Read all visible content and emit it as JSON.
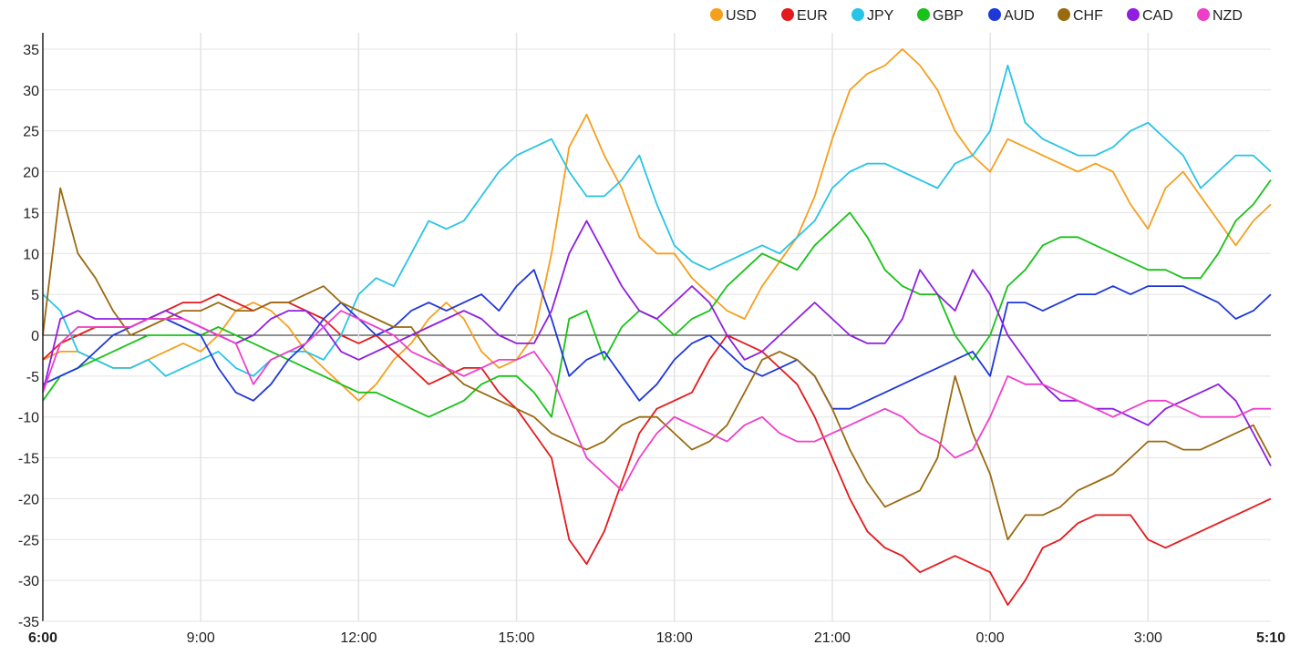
{
  "chart_data": {
    "type": "line",
    "title": "",
    "xlabel": "",
    "ylabel": "",
    "ylim": [
      -35,
      37
    ],
    "y_ticks": [
      35,
      30,
      25,
      20,
      15,
      10,
      5,
      0,
      -5,
      -10,
      -15,
      -20,
      -25,
      -30,
      -35
    ],
    "x_ticks": [
      "6:00",
      "9:00",
      "12:00",
      "15:00",
      "18:00",
      "21:00",
      "0:00",
      "3:00",
      "5:10"
    ],
    "x": [
      "6:00",
      "6:20",
      "6:40",
      "7:00",
      "7:20",
      "7:40",
      "8:00",
      "8:20",
      "8:40",
      "9:00",
      "9:20",
      "9:40",
      "10:00",
      "10:20",
      "10:40",
      "11:00",
      "11:20",
      "11:40",
      "12:00",
      "12:20",
      "12:40",
      "13:00",
      "13:20",
      "13:40",
      "14:00",
      "14:20",
      "14:40",
      "15:00",
      "15:20",
      "15:40",
      "16:00",
      "16:20",
      "16:40",
      "17:00",
      "17:20",
      "17:40",
      "18:00",
      "18:20",
      "18:40",
      "19:00",
      "19:20",
      "19:40",
      "20:00",
      "20:20",
      "20:40",
      "21:00",
      "21:20",
      "21:40",
      "22:00",
      "22:20",
      "22:40",
      "23:00",
      "23:20",
      "23:40",
      "0:00",
      "0:20",
      "0:40",
      "1:00",
      "1:20",
      "1:40",
      "2:00",
      "2:20",
      "2:40",
      "3:00",
      "3:20",
      "3:40",
      "4:00",
      "4:20",
      "4:40",
      "5:00",
      "5:10"
    ],
    "legend_position": "top-right",
    "grid": true,
    "series": [
      {
        "name": "USD",
        "color": "#f59f1e",
        "values": [
          -3,
          -2,
          -2,
          -3,
          -4,
          -4,
          -3,
          -2,
          -1,
          -2,
          0,
          3,
          4,
          3,
          1,
          -2,
          -4,
          -6,
          -8,
          -6,
          -3,
          -1,
          2,
          4,
          2,
          -2,
          -4,
          -3,
          0,
          10,
          23,
          27,
          22,
          18,
          12,
          10,
          10,
          7,
          5,
          3,
          2,
          6,
          9,
          12,
          17,
          24,
          30,
          32,
          33,
          35,
          33,
          30,
          25,
          22,
          20,
          24,
          23,
          22,
          21,
          20,
          21,
          20,
          16,
          13,
          18,
          20,
          17,
          14,
          11,
          14,
          16
        ]
      },
      {
        "name": "EUR",
        "color": "#e41a1c",
        "values": [
          -3,
          -1,
          0,
          1,
          1,
          1,
          2,
          3,
          4,
          4,
          5,
          4,
          3,
          4,
          4,
          3,
          2,
          0,
          -1,
          0,
          -2,
          -4,
          -6,
          -5,
          -4,
          -4,
          -7,
          -9,
          -12,
          -15,
          -25,
          -28,
          -24,
          -18,
          -12,
          -9,
          -8,
          -7,
          -3,
          0,
          -1,
          -2,
          -4,
          -6,
          -10,
          -15,
          -20,
          -24,
          -26,
          -27,
          -29,
          -28,
          -27,
          -28,
          -29,
          -33,
          -30,
          -26,
          -25,
          -23,
          -22,
          -22,
          -22,
          -25,
          -26,
          -25,
          -24,
          -23,
          -22,
          -21,
          -20
        ]
      },
      {
        "name": "JPY",
        "color": "#27c4e6",
        "values": [
          5,
          3,
          -2,
          -3,
          -4,
          -4,
          -3,
          -5,
          -4,
          -3,
          -2,
          -4,
          -5,
          -3,
          -2,
          -2,
          -3,
          0,
          5,
          7,
          6,
          10,
          14,
          13,
          14,
          17,
          20,
          22,
          23,
          24,
          20,
          17,
          17,
          19,
          22,
          16,
          11,
          9,
          8,
          9,
          10,
          11,
          10,
          12,
          14,
          18,
          20,
          21,
          21,
          20,
          19,
          18,
          21,
          22,
          25,
          33,
          26,
          24,
          23,
          22,
          22,
          23,
          25,
          26,
          24,
          22,
          18,
          20,
          22,
          22,
          20
        ]
      },
      {
        "name": "GBP",
        "color": "#19c219",
        "values": [
          -8,
          -5,
          -4,
          -3,
          -2,
          -1,
          0,
          0,
          0,
          0,
          1,
          0,
          -1,
          -2,
          -3,
          -4,
          -5,
          -6,
          -7,
          -7,
          -8,
          -9,
          -10,
          -9,
          -8,
          -6,
          -5,
          -5,
          -7,
          -10,
          2,
          3,
          -3,
          1,
          3,
          2,
          0,
          2,
          3,
          6,
          8,
          10,
          9,
          8,
          11,
          13,
          15,
          12,
          8,
          6,
          5,
          5,
          0,
          -3,
          0,
          6,
          8,
          11,
          12,
          12,
          11,
          10,
          9,
          8,
          8,
          7,
          7,
          10,
          14,
          16,
          19
        ]
      },
      {
        "name": "AUD",
        "color": "#1f38d8",
        "values": [
          -6,
          -5,
          -4,
          -2,
          0,
          1,
          2,
          2,
          1,
          0,
          -4,
          -7,
          -8,
          -6,
          -3,
          -1,
          2,
          4,
          2,
          0,
          1,
          3,
          4,
          3,
          4,
          5,
          3,
          6,
          8,
          2,
          -5,
          -3,
          -2,
          -5,
          -8,
          -6,
          -3,
          -1,
          0,
          -2,
          -4,
          -5,
          -4,
          -3,
          -5,
          -9,
          -9,
          -8,
          -7,
          -6,
          -5,
          -4,
          -3,
          -2,
          -5,
          4,
          4,
          3,
          4,
          5,
          5,
          6,
          5,
          6,
          6,
          6,
          5,
          4,
          2,
          3,
          5
        ]
      },
      {
        "name": "CHF",
        "color": "#9a6a10",
        "values": [
          0,
          18,
          10,
          7,
          3,
          0,
          1,
          2,
          3,
          3,
          4,
          3,
          3,
          4,
          4,
          5,
          6,
          4,
          3,
          2,
          1,
          1,
          -2,
          -4,
          -6,
          -7,
          -8,
          -9,
          -10,
          -12,
          -13,
          -14,
          -13,
          -11,
          -10,
          -10,
          -12,
          -14,
          -13,
          -11,
          -7,
          -3,
          -2,
          -3,
          -5,
          -9,
          -14,
          -18,
          -21,
          -20,
          -19,
          -15,
          -5,
          -12,
          -17,
          -25,
          -22,
          -22,
          -21,
          -19,
          -18,
          -17,
          -15,
          -13,
          -13,
          -14,
          -14,
          -13,
          -12,
          -11,
          -15
        ]
      },
      {
        "name": "CAD",
        "color": "#8e1ee0",
        "values": [
          -7,
          2,
          3,
          2,
          2,
          2,
          2,
          3,
          2,
          1,
          0,
          -1,
          0,
          2,
          3,
          3,
          1,
          -2,
          -3,
          -2,
          -1,
          0,
          1,
          2,
          3,
          2,
          0,
          -1,
          -1,
          3,
          10,
          14,
          10,
          6,
          3,
          2,
          4,
          6,
          4,
          0,
          -3,
          -2,
          0,
          2,
          4,
          2,
          0,
          -1,
          -1,
          2,
          8,
          5,
          3,
          8,
          5,
          0,
          -3,
          -6,
          -8,
          -8,
          -9,
          -9,
          -10,
          -11,
          -9,
          -8,
          -7,
          -6,
          -8,
          -12,
          -16
        ]
      },
      {
        "name": "NZD",
        "color": "#ee3fc9",
        "values": [
          -7,
          -1,
          1,
          1,
          1,
          1,
          2,
          2,
          2,
          1,
          0,
          -1,
          -6,
          -3,
          -2,
          -1,
          1,
          3,
          2,
          1,
          0,
          -2,
          -3,
          -4,
          -5,
          -4,
          -3,
          -3,
          -2,
          -5,
          -10,
          -15,
          -17,
          -19,
          -15,
          -12,
          -10,
          -11,
          -12,
          -13,
          -11,
          -10,
          -12,
          -13,
          -13,
          -12,
          -11,
          -10,
          -9,
          -10,
          -12,
          -13,
          -15,
          -14,
          -10,
          -5,
          -6,
          -6,
          -7,
          -8,
          -9,
          -10,
          -9,
          -8,
          -8,
          -9,
          -10,
          -10,
          -10,
          -9,
          -9
        ]
      }
    ]
  }
}
